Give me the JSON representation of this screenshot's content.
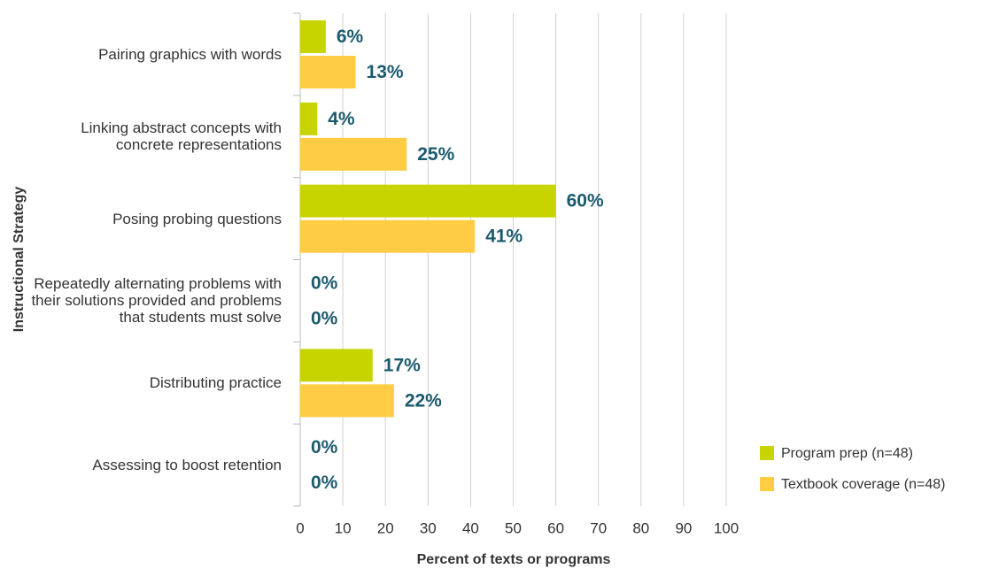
{
  "chart_data": {
    "type": "bar",
    "orientation": "horizontal",
    "y_axis_label": "Instructional Strategy",
    "x_axis_label": "Percent of texts or programs",
    "categories": [
      "Pairing graphics with words",
      "Linking abstract concepts with concrete representations",
      "Posing probing questions",
      "Repeatedly alternating problems with their solutions provided and problems that students must solve",
      "Distributing practice",
      "Assessing to boost retention"
    ],
    "series": [
      {
        "name": "Program prep (n=48)",
        "color": "#c8d400",
        "values": [
          6,
          4,
          60,
          0,
          17,
          0
        ],
        "value_labels": [
          "6%",
          "4%",
          "60%",
          "0%",
          "17%",
          "0%"
        ]
      },
      {
        "name": "Textbook coverage (n=48)",
        "color": "#ffcc44",
        "values": [
          13,
          25,
          41,
          0,
          22,
          0
        ],
        "value_labels": [
          "13%",
          "25%",
          "41%",
          "0%",
          "22%",
          "0%"
        ]
      }
    ],
    "xlim": [
      0,
      100
    ],
    "xticks": [
      0,
      10,
      20,
      30,
      40,
      50,
      60,
      70,
      80,
      90,
      100
    ],
    "grid": true,
    "legend": "lower right"
  }
}
